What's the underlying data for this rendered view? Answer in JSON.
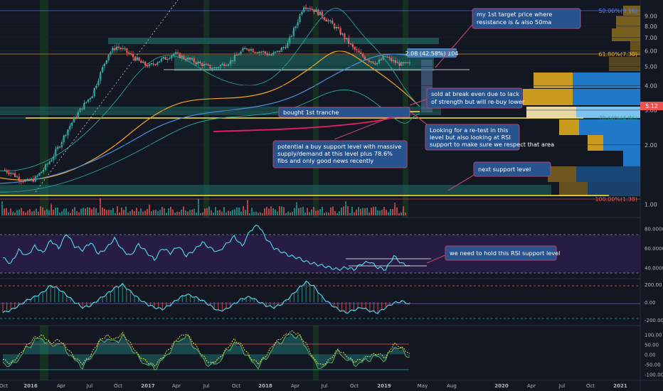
{
  "colors": {
    "bg": "#131722",
    "grid": "#1f2433",
    "up": "#26a69a",
    "down": "#ef5350",
    "yellow": "#ffeb3b",
    "cyan": "#4dd0e1",
    "orange": "#f5a623",
    "teal_zone": "#1e5f5a",
    "note_fill": "#27538f",
    "note_border": "#b8426b",
    "rsi_fill": "#2a1d4a"
  },
  "x_axis": {
    "labels": [
      "Oct",
      "2016",
      "Apr",
      "Jul",
      "Oct",
      "2017",
      "Apr",
      "Jul",
      "Oct",
      "2018",
      "Apr",
      "Jul",
      "Oct",
      "2019",
      "May",
      "Aug",
      "2020",
      "Apr",
      "Jul",
      "Oct",
      "2021"
    ]
  },
  "chart_data": [
    {
      "type": "line",
      "name": "price",
      "y_axis": "log",
      "ylim": [
        0.9,
        10.5
      ],
      "ticks": [
        "9.00",
        "8.00",
        "7.00",
        "6.00",
        "5.00",
        "4.00",
        "3.00",
        "2.00",
        "1.00"
      ],
      "tick_values": [
        9,
        8,
        7,
        6,
        5,
        4,
        3,
        2,
        1
      ],
      "last_price_label": "5.12",
      "last_price": 5.12,
      "fib_levels": [
        {
          "label": "50.00%(9.16)",
          "value": 9.16
        },
        {
          "label": "61.80%(7.30)",
          "value": 7.3
        },
        {
          "label": "78.60%(4.86)",
          "value": 4.86
        },
        {
          "label": "100.00%(1.38)",
          "value": 1.38
        }
      ],
      "measure_label": "2.08 (42.58%) 104",
      "close_path": [
        [
          0,
          1.5
        ],
        [
          1,
          1.45
        ],
        [
          2,
          1.35
        ],
        [
          3,
          1.3
        ],
        [
          4,
          1.35
        ],
        [
          5,
          1.5
        ],
        [
          6,
          1.7
        ],
        [
          7,
          2.0
        ],
        [
          8,
          2.4
        ],
        [
          9,
          2.8
        ],
        [
          10,
          3.2
        ],
        [
          11,
          3.6
        ],
        [
          12,
          4.6
        ],
        [
          13,
          5.8
        ],
        [
          14,
          6.3
        ],
        [
          15,
          6.0
        ],
        [
          16,
          5.6
        ],
        [
          17,
          5.2
        ],
        [
          18,
          5.0
        ],
        [
          19,
          5.3
        ],
        [
          20,
          5.5
        ],
        [
          21,
          5.8
        ],
        [
          22,
          5.6
        ],
        [
          23,
          5.4
        ],
        [
          24,
          5.2
        ],
        [
          25,
          5.0
        ],
        [
          26,
          4.9
        ],
        [
          27,
          5.1
        ],
        [
          28,
          5.3
        ],
        [
          29,
          5.8
        ],
        [
          30,
          6.2
        ],
        [
          31,
          6.0
        ],
        [
          32,
          5.9
        ],
        [
          33,
          5.7
        ],
        [
          34,
          6.0
        ],
        [
          35,
          6.5
        ],
        [
          36,
          8.0
        ],
        [
          37,
          10.2
        ],
        [
          38,
          9.8
        ],
        [
          39,
          9.2
        ],
        [
          40,
          8.5
        ],
        [
          41,
          7.8
        ],
        [
          42,
          7.0
        ],
        [
          43,
          6.2
        ],
        [
          44,
          5.7
        ],
        [
          45,
          5.4
        ],
        [
          46,
          5.2
        ],
        [
          47,
          5.6
        ],
        [
          48,
          5.3
        ],
        [
          49,
          5.1
        ],
        [
          50,
          5.12
        ]
      ]
    },
    {
      "type": "line",
      "name": "RSI",
      "ylim": [
        30,
        90
      ],
      "ticks": [
        "80.0000",
        "60.0000",
        "40.0000"
      ],
      "tick_values": [
        80,
        60,
        40
      ],
      "values": [
        50,
        44,
        58,
        52,
        62,
        55,
        68,
        60,
        75,
        62,
        58,
        66,
        54,
        60,
        70,
        58,
        52,
        64,
        56,
        48,
        60,
        55,
        62,
        52,
        58,
        66,
        60,
        56,
        64,
        72,
        62,
        78,
        84,
        70,
        60,
        56,
        52,
        50,
        46,
        44,
        42,
        40,
        38,
        40,
        38,
        44,
        46,
        40,
        38,
        52,
        44,
        42
      ]
    },
    {
      "type": "line",
      "name": "oscillator",
      "ylim": [
        -250,
        250
      ],
      "ticks": [
        "200.00",
        "0.00",
        "-200.00"
      ],
      "tick_values": [
        200,
        0,
        -200
      ],
      "values": [
        -120,
        -90,
        -40,
        20,
        60,
        110,
        190,
        150,
        80,
        0,
        -60,
        -40,
        30,
        90,
        160,
        200,
        120,
        40,
        -20,
        -60,
        -80,
        -30,
        40,
        90,
        60,
        20,
        -40,
        -100,
        -80,
        -20,
        40,
        60,
        10,
        -40,
        -60,
        -20,
        60,
        150,
        230,
        180,
        60,
        -20,
        -80,
        -120,
        -90,
        -60,
        -100,
        -120,
        -60,
        -10,
        10,
        -20
      ]
    },
    {
      "type": "area",
      "name": "momentum",
      "ylim": [
        -120,
        130
      ],
      "ticks": [
        "100.00",
        "50.00",
        "0.00",
        "-50.00",
        "-100.00"
      ],
      "tick_values": [
        100,
        50,
        0,
        -50,
        -100
      ],
      "values": [
        -40,
        -60,
        -20,
        30,
        70,
        80,
        40,
        60,
        20,
        -30,
        -60,
        -20,
        50,
        80,
        60,
        90,
        40,
        -20,
        -50,
        -70,
        -30,
        20,
        70,
        90,
        40,
        -20,
        -60,
        -40,
        10,
        60,
        30,
        -30,
        -60,
        -20,
        40,
        70,
        100,
        90,
        40,
        -40,
        -70,
        -40,
        10,
        -20,
        -50,
        -40,
        -20,
        -10,
        -30,
        40,
        20,
        -10
      ]
    }
  ],
  "annotations": {
    "target_note": "my 1st target price where resistance is & also 50ma",
    "sold_note": "sold at break even due to lack of strength but will re-buy lower",
    "bought_label": "bought 1st tranche",
    "retest_note": "Looking for a re-test in this level but also looking at RSI support to make sure we respect that area",
    "potential_note": "potential a buy support level with massive supply/demand at this level plus 78.6% fibs and only good news recently",
    "next_support_note": "next support level",
    "rsi_note": "we need to hold this RSI support level"
  }
}
